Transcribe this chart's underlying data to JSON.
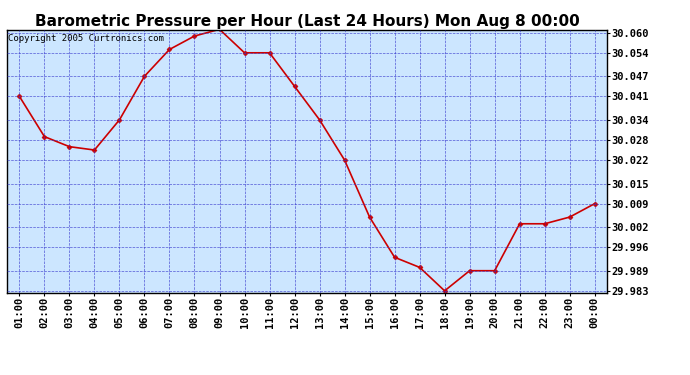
{
  "title": "Barometric Pressure per Hour (Last 24 Hours) Mon Aug 8 00:00",
  "copyright": "Copyright 2005 Curtronics.com",
  "x_labels": [
    "01:00",
    "02:00",
    "03:00",
    "04:00",
    "05:00",
    "06:00",
    "07:00",
    "08:00",
    "09:00",
    "10:00",
    "11:00",
    "12:00",
    "13:00",
    "14:00",
    "15:00",
    "16:00",
    "17:00",
    "18:00",
    "19:00",
    "20:00",
    "21:00",
    "22:00",
    "23:00",
    "00:00"
  ],
  "y_values": [
    30.041,
    30.029,
    30.026,
    30.025,
    30.034,
    30.047,
    30.055,
    30.059,
    30.061,
    30.054,
    30.054,
    30.044,
    30.034,
    30.022,
    30.005,
    29.993,
    29.99,
    29.983,
    29.989,
    29.989,
    30.003,
    30.003,
    30.005,
    30.009
  ],
  "ylim_min": 29.9825,
  "ylim_max": 30.0608,
  "yticks": [
    30.06,
    30.054,
    30.047,
    30.041,
    30.034,
    30.028,
    30.022,
    30.015,
    30.009,
    30.002,
    29.996,
    29.989,
    29.983
  ],
  "line_color": "#cc0000",
  "marker": "D",
  "marker_size": 2.5,
  "plot_bg": "#cce6ff",
  "grid_color": "#3333cc",
  "title_fontsize": 11,
  "tick_fontsize": 7.5,
  "copyright_fontsize": 6.5
}
